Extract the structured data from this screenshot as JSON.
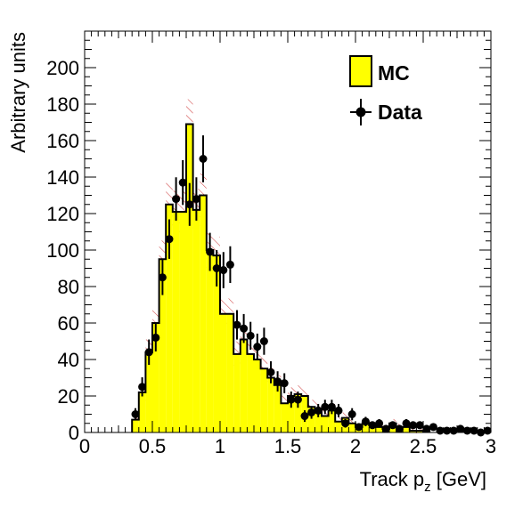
{
  "chart_data": {
    "type": "bar",
    "subtype": "histogram-with-data-points",
    "xlabel": "Track p",
    "xlabel_subscript": "z",
    "xlabel_unit": " [GeV]",
    "ylabel": "Arbitrary units",
    "xlim": [
      0,
      3
    ],
    "ylim": [
      0,
      220
    ],
    "x_ticks": [
      {
        "value": 0,
        "label": "0"
      },
      {
        "value": 0.5,
        "label": "0.5"
      },
      {
        "value": 1,
        "label": "1"
      },
      {
        "value": 1.5,
        "label": "1.5"
      },
      {
        "value": 2,
        "label": "2"
      },
      {
        "value": 2.5,
        "label": "2.5"
      },
      {
        "value": 3,
        "label": "3"
      }
    ],
    "y_ticks": [
      {
        "value": 0,
        "label": "0"
      },
      {
        "value": 20,
        "label": "20"
      },
      {
        "value": 40,
        "label": "40"
      },
      {
        "value": 60,
        "label": "60"
      },
      {
        "value": 80,
        "label": "80"
      },
      {
        "value": 100,
        "label": "100"
      },
      {
        "value": 120,
        "label": "120"
      },
      {
        "value": 140,
        "label": "140"
      },
      {
        "value": 160,
        "label": "160"
      },
      {
        "value": 180,
        "label": "180"
      },
      {
        "value": 200,
        "label": "200"
      }
    ],
    "bin_width": 0.05,
    "bin_edges_start": 0.35,
    "legend": {
      "position": "top-right",
      "items": [
        {
          "label": "MC",
          "style": "filled-box"
        },
        {
          "label": "Data",
          "style": "marker-with-errorbar"
        }
      ]
    },
    "colors": {
      "mc_fill": "#ffff00",
      "mc_line": "#000000",
      "uncertainty_hatch": "#cc3333",
      "data_marker": "#000000"
    },
    "series": [
      {
        "name": "MC",
        "kind": "histogram",
        "values": [
          7,
          22,
          44,
          60,
          95,
          125,
          121,
          121,
          169,
          122,
          130,
          100,
          97,
          65,
          65,
          43,
          51,
          43,
          40,
          35,
          30,
          26,
          16,
          20,
          21,
          20,
          14,
          13,
          9,
          12,
          6,
          8,
          5,
          3,
          5,
          4,
          3,
          2,
          5,
          3,
          3,
          1,
          1
        ]
      },
      {
        "name": "Data",
        "kind": "points",
        "x": [
          0.375,
          0.425,
          0.475,
          0.525,
          0.575,
          0.625,
          0.675,
          0.725,
          0.775,
          0.825,
          0.875,
          0.925,
          0.975,
          1.025,
          1.075,
          1.125,
          1.175,
          1.225,
          1.275,
          1.325,
          1.375,
          1.425,
          1.475,
          1.525,
          1.575,
          1.625,
          1.675,
          1.725,
          1.775,
          1.825,
          1.875,
          1.925,
          1.975,
          2.025,
          2.075,
          2.125,
          2.175,
          2.225,
          2.275,
          2.325,
          2.375,
          2.425,
          2.475,
          2.525,
          2.575,
          2.625,
          2.675,
          2.725,
          2.775,
          2.825,
          2.875,
          2.925,
          2.975
        ],
        "y": [
          10,
          25,
          44,
          52,
          85,
          106,
          128,
          137,
          125,
          128,
          150,
          99,
          90,
          89,
          92,
          59,
          57,
          53,
          47,
          50,
          33,
          28,
          27,
          18,
          18,
          9,
          11,
          12,
          14,
          14,
          12,
          5,
          10,
          3,
          6,
          4,
          5,
          2,
          4,
          2,
          5,
          4,
          4,
          2,
          3,
          1,
          1,
          1,
          2,
          1,
          1,
          0,
          1
        ]
      }
    ]
  }
}
